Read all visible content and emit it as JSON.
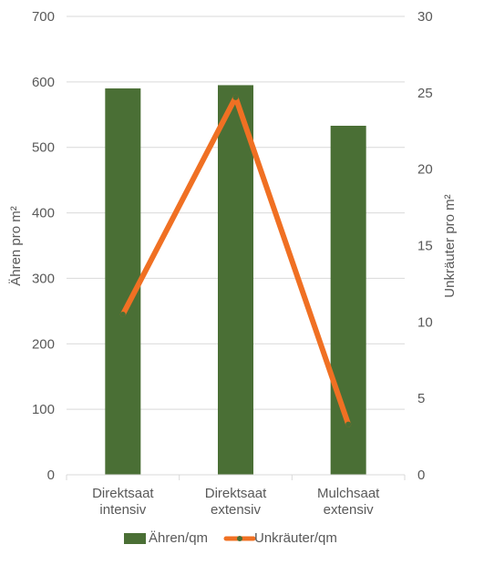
{
  "chart_data": {
    "type": "bar+line",
    "categories": [
      [
        "Direktsaat",
        "intensiv"
      ],
      [
        "Direktsaat",
        "extensiv"
      ],
      [
        "Mulchsaat",
        "extensiv"
      ]
    ],
    "series": [
      {
        "name": "Ähren/qm",
        "type": "bar",
        "axis": "left",
        "color": "#4a6f35",
        "values": [
          590,
          595,
          533
        ]
      },
      {
        "name": "Unkräuter/qm",
        "type": "line",
        "axis": "right",
        "color": "#f07023",
        "marker_color": "#4a6f35",
        "values": [
          10.5,
          24.7,
          3.3
        ]
      }
    ],
    "ylabel": "Ähren pro m²",
    "y2label": "Unkräuter pro m²",
    "ylim": [
      0,
      700
    ],
    "y2lim": [
      0,
      30
    ],
    "yticks": [
      0,
      100,
      200,
      300,
      400,
      500,
      600,
      700
    ],
    "y2ticks": [
      0,
      5,
      10,
      15,
      20,
      25,
      30
    ],
    "grid": true,
    "legend_position": "bottom"
  }
}
